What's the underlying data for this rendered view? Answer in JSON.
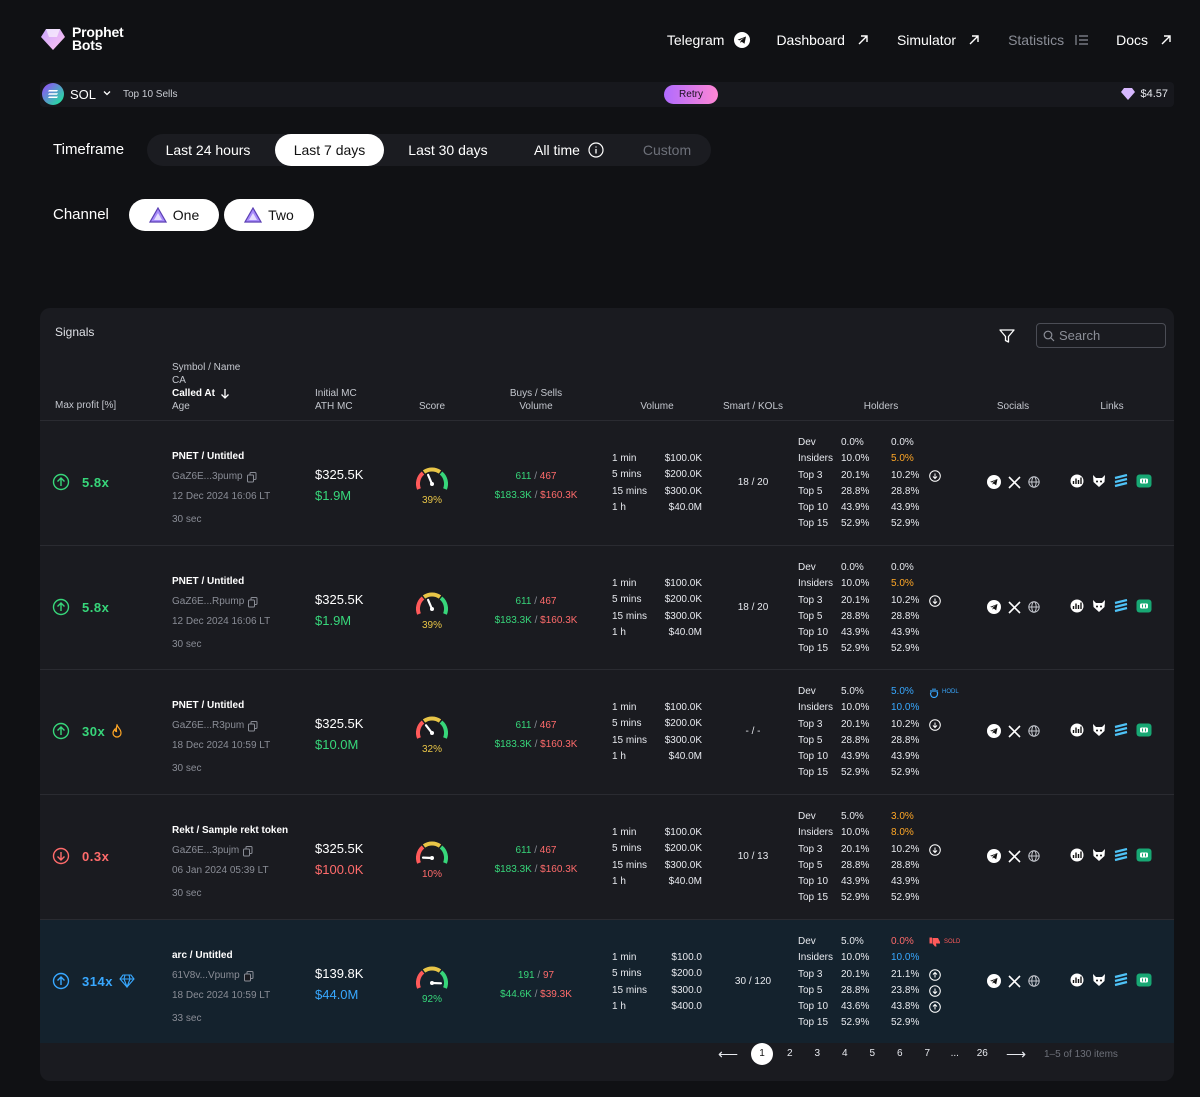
{
  "header": {
    "logo_line1": "Prophet",
    "logo_line2": "Bots",
    "nav": [
      {
        "label": "Telegram"
      },
      {
        "label": "Dashboard"
      },
      {
        "label": "Simulator"
      },
      {
        "label": "Statistics"
      },
      {
        "label": "Docs"
      }
    ]
  },
  "ticker": {
    "chain": "SOL",
    "title": "Top 10 Sells",
    "retry_label": "Retry",
    "price": "$4.57"
  },
  "timeframe": {
    "label": "Timeframe",
    "options": [
      "Last 24 hours",
      "Last 7 days",
      "Last 30 days",
      "All time",
      "Custom"
    ],
    "selected": "Last 7 days"
  },
  "channel": {
    "label": "Channel",
    "options": [
      "One",
      "Two"
    ]
  },
  "signals": {
    "title": "Signals",
    "search_placeholder": "Search",
    "columns": {
      "max_profit": "Max profit [%]",
      "symbol": "Symbol / Name",
      "ca": "CA",
      "called_at": "Called At",
      "age": "Age",
      "initial_mc": "Initial MC",
      "ath_mc": "ATH MC",
      "score": "Score",
      "buys_sells": "Buys / Sells",
      "volume_sub": "Volume",
      "volume": "Volume",
      "smart_kols": "Smart / KOLs",
      "holders": "Holders",
      "socials": "Socials",
      "links": "Links"
    },
    "holder_labels": [
      "Dev",
      "Insiders",
      "Top 3",
      "Top 5",
      "Top 10",
      "Top 15"
    ],
    "volume_labels": [
      "1 min",
      "5 mins",
      "15 mins",
      "1 h"
    ],
    "colors": {
      "green": "#37d67a",
      "red": "#ff6b6b",
      "blue": "#38a8ff",
      "orange": "#ffa726"
    },
    "rows": [
      {
        "direction": "up",
        "max_profit": "5.8x",
        "badge": "",
        "symbol": "PNET / Untitled",
        "ca": "GaZ6E...3pump",
        "called_at": "12 Dec 2024 16:06 LT",
        "age": "30 sec",
        "initial_mc": "$325.5K",
        "ath_mc": "$1.9M",
        "ath_color": "green",
        "score": 39,
        "score_label": "39%",
        "score_color": "yellow",
        "buys": "611",
        "sells": "467",
        "buy_vol": "$183.3K",
        "sell_vol": "$160.3K",
        "volume": [
          "$100.0K",
          "$200.0K",
          "$300.0K",
          "$40.0M"
        ],
        "smart_kols": "18 / 20",
        "holders_a": [
          "0.0%",
          "10.0%",
          "20.1%",
          "28.8%",
          "43.9%",
          "52.9%"
        ],
        "holders_b": [
          "0.0%",
          "5.0%",
          "10.2%",
          "28.8%",
          "43.9%",
          "52.9%"
        ],
        "holders_b_colors": [
          "",
          "orange",
          "",
          "",
          "",
          ""
        ],
        "holders_a_colors": [
          "",
          "",
          "",
          "",
          "",
          ""
        ],
        "tag": "",
        "tag_arrows": [
          "",
          "",
          "down",
          "",
          "",
          ""
        ]
      },
      {
        "direction": "up",
        "max_profit": "5.8x",
        "badge": "",
        "symbol": "PNET / Untitled",
        "ca": "GaZ6E...Rpump",
        "called_at": "12 Dec 2024 16:06 LT",
        "age": "30 sec",
        "initial_mc": "$325.5K",
        "ath_mc": "$1.9M",
        "ath_color": "green",
        "score": 39,
        "score_label": "39%",
        "score_color": "yellow",
        "buys": "611",
        "sells": "467",
        "buy_vol": "$183.3K",
        "sell_vol": "$160.3K",
        "volume": [
          "$100.0K",
          "$200.0K",
          "$300.0K",
          "$40.0M"
        ],
        "smart_kols": "18 / 20",
        "holders_a": [
          "0.0%",
          "10.0%",
          "20.1%",
          "28.8%",
          "43.9%",
          "52.9%"
        ],
        "holders_b": [
          "0.0%",
          "5.0%",
          "10.2%",
          "28.8%",
          "43.9%",
          "52.9%"
        ],
        "holders_b_colors": [
          "",
          "orange",
          "",
          "",
          "",
          ""
        ],
        "holders_a_colors": [
          "",
          "",
          "",
          "",
          "",
          ""
        ],
        "tag": "",
        "tag_arrows": [
          "",
          "",
          "down",
          "",
          "",
          ""
        ]
      },
      {
        "direction": "up",
        "max_profit": "30x",
        "badge": "fire",
        "symbol": "PNET / Untitled",
        "ca": "GaZ6E...R3pum",
        "called_at": "18 Dec 2024 10:59 LT",
        "age": "30 sec",
        "initial_mc": "$325.5K",
        "ath_mc": "$10.0M",
        "ath_color": "green",
        "score": 32,
        "score_label": "32%",
        "score_color": "yellow",
        "buys": "611",
        "sells": "467",
        "buy_vol": "$183.3K",
        "sell_vol": "$160.3K",
        "volume": [
          "$100.0K",
          "$200.0K",
          "$300.0K",
          "$40.0M"
        ],
        "smart_kols": "- / -",
        "holders_a": [
          "5.0%",
          "10.0%",
          "20.1%",
          "28.8%",
          "43.9%",
          "52.9%"
        ],
        "holders_b": [
          "5.0%",
          "10.0%",
          "10.2%",
          "28.8%",
          "43.9%",
          "52.9%"
        ],
        "holders_b_colors": [
          "blue",
          "blue",
          "",
          "",
          "",
          ""
        ],
        "holders_a_colors": [
          "",
          "",
          "",
          "",
          "",
          ""
        ],
        "tag": "HODL",
        "tag_arrows": [
          "",
          "",
          "down",
          "",
          "",
          ""
        ]
      },
      {
        "direction": "down",
        "max_profit": "0.3x",
        "badge": "",
        "symbol": "Rekt / Sample rekt token",
        "ca": "GaZ6E...3pujm",
        "called_at": "06 Jan 2024 05:39 LT",
        "age": "30 sec",
        "initial_mc": "$325.5K",
        "ath_mc": "$100.0K",
        "ath_color": "red",
        "score": 10,
        "score_label": "10%",
        "score_color": "red",
        "buys": "611",
        "sells": "467",
        "buy_vol": "$183.3K",
        "sell_vol": "$160.3K",
        "volume": [
          "$100.0K",
          "$200.0K",
          "$300.0K",
          "$40.0M"
        ],
        "smart_kols": "10 / 13",
        "holders_a": [
          "5.0%",
          "10.0%",
          "20.1%",
          "28.8%",
          "43.9%",
          "52.9%"
        ],
        "holders_b": [
          "3.0%",
          "8.0%",
          "10.2%",
          "28.8%",
          "43.9%",
          "52.9%"
        ],
        "holders_b_colors": [
          "orange",
          "orange",
          "",
          "",
          "",
          ""
        ],
        "holders_a_colors": [
          "",
          "",
          "",
          "",
          "",
          ""
        ],
        "tag": "",
        "tag_arrows": [
          "",
          "",
          "down",
          "",
          "",
          ""
        ]
      },
      {
        "direction": "up",
        "max_profit": "314x",
        "badge": "diamond",
        "symbol": "arc / Untitled",
        "ca": "61V8v...Vpump",
        "called_at": "18 Dec 2024 10:59 LT",
        "age": "33 sec",
        "initial_mc": "$139.8K",
        "ath_mc": "$44.0M",
        "ath_color": "blue",
        "score": 92,
        "score_label": "92%",
        "score_color": "green",
        "buys": "191",
        "sells": "97",
        "buy_vol": "$44.6K",
        "sell_vol": "$39.3K",
        "volume": [
          "$100.0",
          "$200.0",
          "$300.0",
          "$400.0"
        ],
        "smart_kols": "30 / 120",
        "holders_a": [
          "5.0%",
          "10.0%",
          "20.1%",
          "28.8%",
          "43.6%",
          "52.9%"
        ],
        "holders_b": [
          "0.0%",
          "10.0%",
          "21.1%",
          "23.8%",
          "43.8%",
          "52.9%"
        ],
        "holders_b_colors": [
          "red",
          "blue",
          "",
          "",
          "",
          ""
        ],
        "holders_a_colors": [
          "",
          "",
          "",
          "",
          "",
          ""
        ],
        "tag": "SOLD",
        "tag_arrows": [
          "",
          "",
          "up",
          "down",
          "up",
          ""
        ]
      }
    ]
  },
  "pagination": {
    "pages": [
      "1",
      "2",
      "3",
      "4",
      "5",
      "6",
      "7",
      "...",
      "26"
    ],
    "current": "1",
    "count_text": "1–5 of 130 items"
  }
}
